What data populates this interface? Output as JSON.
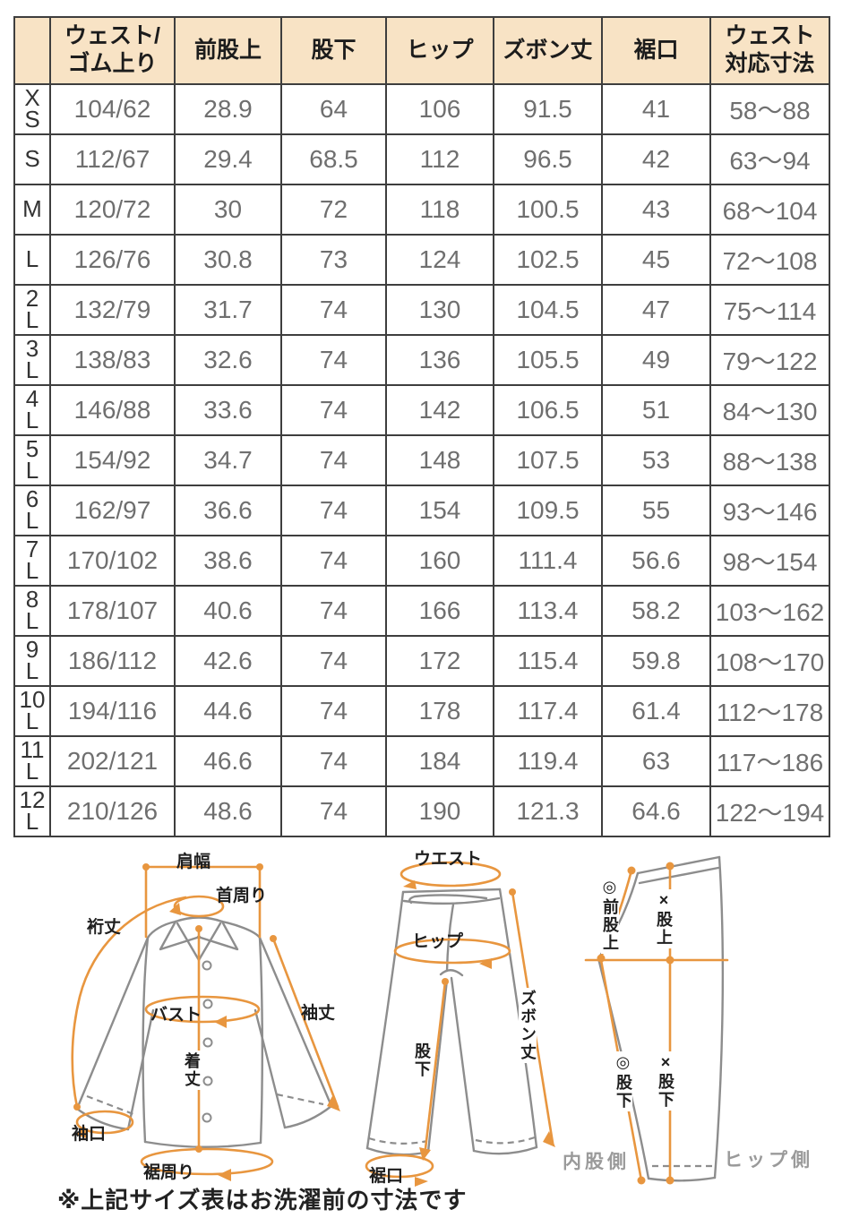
{
  "colors": {
    "accent": "#e8963f",
    "outline": "#8d8d8d",
    "border": "#3e3e3e",
    "header-bg": "#f8e3c5",
    "value": "#6f6f6f",
    "label": "#333333",
    "sidegray": "#9a9a9a"
  },
  "table": {
    "columns": [
      "",
      "ウェスト/\nゴム上り",
      "前股上",
      "股下",
      "ヒップ",
      "ズボン丈",
      "裾口",
      "ウェスト\n対応寸法"
    ],
    "rows": [
      {
        "size": "XS",
        "label": "X\nS",
        "values": [
          "104/62",
          "28.9",
          "64",
          "106",
          "91.5",
          "41",
          "58〜88"
        ]
      },
      {
        "size": "S",
        "label": "S",
        "values": [
          "112/67",
          "29.4",
          "68.5",
          "112",
          "96.5",
          "42",
          "63〜94"
        ]
      },
      {
        "size": "M",
        "label": "M",
        "values": [
          "120/72",
          "30",
          "72",
          "118",
          "100.5",
          "43",
          "68〜104"
        ]
      },
      {
        "size": "L",
        "label": "L",
        "values": [
          "126/76",
          "30.8",
          "73",
          "124",
          "102.5",
          "45",
          "72〜108"
        ]
      },
      {
        "size": "2L",
        "label": "2\nL",
        "values": [
          "132/79",
          "31.7",
          "74",
          "130",
          "104.5",
          "47",
          "75〜114"
        ]
      },
      {
        "size": "3L",
        "label": "3\nL",
        "values": [
          "138/83",
          "32.6",
          "74",
          "136",
          "105.5",
          "49",
          "79〜122"
        ]
      },
      {
        "size": "4L",
        "label": "4\nL",
        "values": [
          "146/88",
          "33.6",
          "74",
          "142",
          "106.5",
          "51",
          "84〜130"
        ]
      },
      {
        "size": "5L",
        "label": "5\nL",
        "values": [
          "154/92",
          "34.7",
          "74",
          "148",
          "107.5",
          "53",
          "88〜138"
        ]
      },
      {
        "size": "6L",
        "label": "6\nL",
        "values": [
          "162/97",
          "36.6",
          "74",
          "154",
          "109.5",
          "55",
          "93〜146"
        ]
      },
      {
        "size": "7L",
        "label": "7\nL",
        "values": [
          "170/102",
          "38.6",
          "74",
          "160",
          "111.4",
          "56.6",
          "98〜154"
        ]
      },
      {
        "size": "8L",
        "label": "8\nL",
        "values": [
          "178/107",
          "40.6",
          "74",
          "166",
          "113.4",
          "58.2",
          "103〜162"
        ]
      },
      {
        "size": "9L",
        "label": "9\nL",
        "values": [
          "186/112",
          "42.6",
          "74",
          "172",
          "115.4",
          "59.8",
          "108〜170"
        ]
      },
      {
        "size": "10L",
        "label": "10\nL",
        "values": [
          "194/116",
          "44.6",
          "74",
          "178",
          "117.4",
          "61.4",
          "112〜178"
        ]
      },
      {
        "size": "11L",
        "label": "11\nL",
        "values": [
          "202/121",
          "46.6",
          "74",
          "184",
          "119.4",
          "63",
          "117〜186"
        ]
      },
      {
        "size": "12L",
        "label": "12\nL",
        "values": [
          "210/126",
          "48.6",
          "74",
          "190",
          "121.3",
          "64.6",
          "122〜194"
        ]
      }
    ]
  },
  "diagram_labels": {
    "katahaba": "肩幅",
    "kubimawari": "首周り",
    "yukitake": "裄丈",
    "bust": "バスト",
    "sodetake": "袖丈",
    "kitake": "着丈",
    "sodeguchi": "袖口",
    "susomawari": "裾周り",
    "waist": "ウエスト",
    "hip": "ヒップ",
    "zubontake": "ズボン丈",
    "matashita_front": "股下",
    "susoguchi": "裾口",
    "mae_matagami": "◎前股上",
    "matagami_x": "×股上",
    "matashita_maru": "◎股下",
    "matashita_x": "×股下",
    "uchimata_side": "内股側",
    "hip_side": "ヒップ側"
  },
  "note": "※上記サイズ表はお洗濯前の寸法です"
}
